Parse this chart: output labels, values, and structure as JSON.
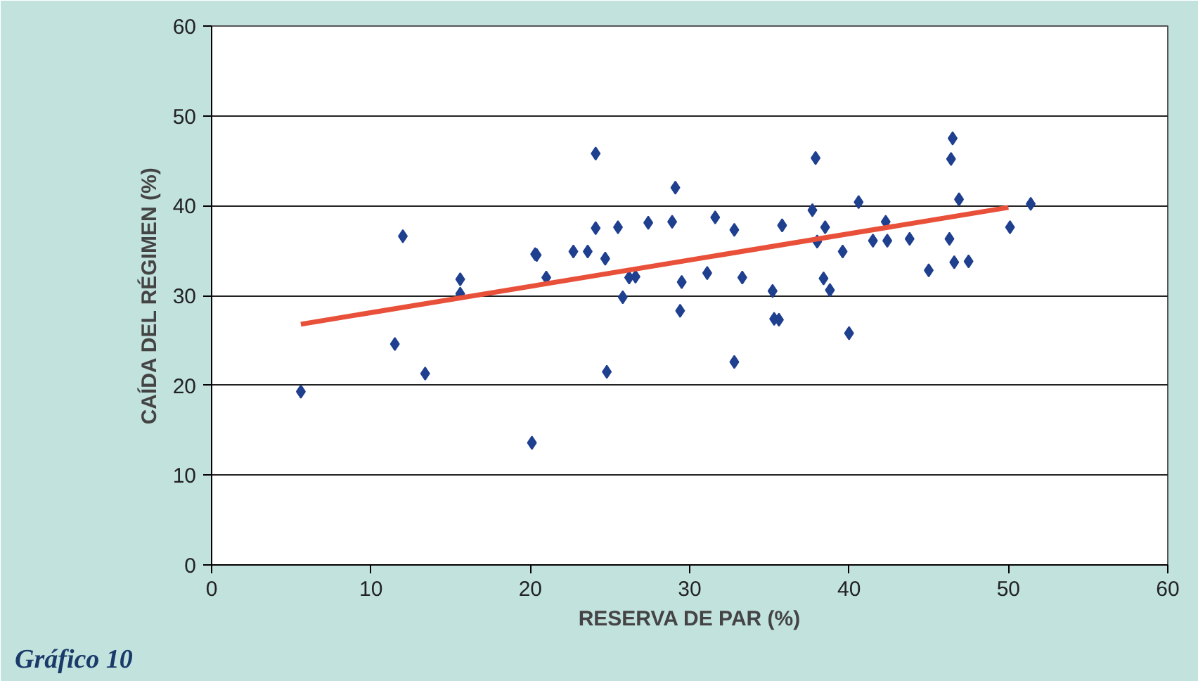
{
  "chart_data": {
    "type": "scatter",
    "xlabel": "RESERVA DE PAR (%)",
    "ylabel": "CAÍDA DEL RÉGIMEN (%)",
    "annotations": [
      "Gráfico 10"
    ],
    "xlim": [
      0,
      60
    ],
    "xticks": [
      0,
      10,
      20,
      30,
      40,
      50,
      60
    ],
    "ylim": [
      0,
      60
    ],
    "yticks": [
      0,
      10,
      20,
      30,
      40,
      50,
      60
    ],
    "grid": "y",
    "series": [
      {
        "marker": "diamond",
        "color": "#1f3f8f",
        "x": [
          5.6,
          11.5,
          12,
          13.4,
          15.6,
          15.6,
          20.1,
          20.3,
          20.4,
          21,
          22.7,
          23.6,
          24.1,
          24.1,
          24.7,
          24.8,
          25.5,
          25.8,
          26.2,
          26.6,
          27.4,
          28.9,
          29.1,
          29.5,
          29.4,
          31.6,
          31.1,
          32.8,
          32.8,
          33.3,
          35.2,
          35.3,
          35.6,
          35.8,
          37.7,
          37.9,
          38.0,
          38.4,
          38.5,
          38.8,
          39.6,
          40.0,
          40.6,
          41.5,
          42.3,
          42.4,
          43.8,
          45,
          46.3,
          46.5,
          46.4,
          46.6,
          46.9,
          47.5,
          50.1,
          51.4
        ],
        "values": [
          19.3,
          24.6,
          36.6,
          21.3,
          31.8,
          30.2,
          13.6,
          34.6,
          34.5,
          32,
          34.9,
          34.9,
          37.5,
          45.8,
          34.1,
          21.5,
          37.6,
          29.8,
          32,
          32.1,
          38.1,
          38.2,
          42,
          31.5,
          28.3,
          38.7,
          32.5,
          37.3,
          22.6,
          32,
          30.5,
          27.4,
          27.3,
          37.8,
          39.5,
          45.3,
          36,
          31.9,
          37.6,
          30.6,
          34.9,
          25.8,
          40.4,
          36.1,
          38.2,
          36.1,
          36.3,
          32.8,
          36.3,
          47.5,
          45.2,
          33.7,
          40.7,
          33.8,
          37.6,
          40.2
        ]
      },
      {
        "type": "line",
        "color": "#e8503a",
        "x": [
          5.6,
          50
        ],
        "values": [
          26.8,
          39.8
        ]
      }
    ]
  }
}
